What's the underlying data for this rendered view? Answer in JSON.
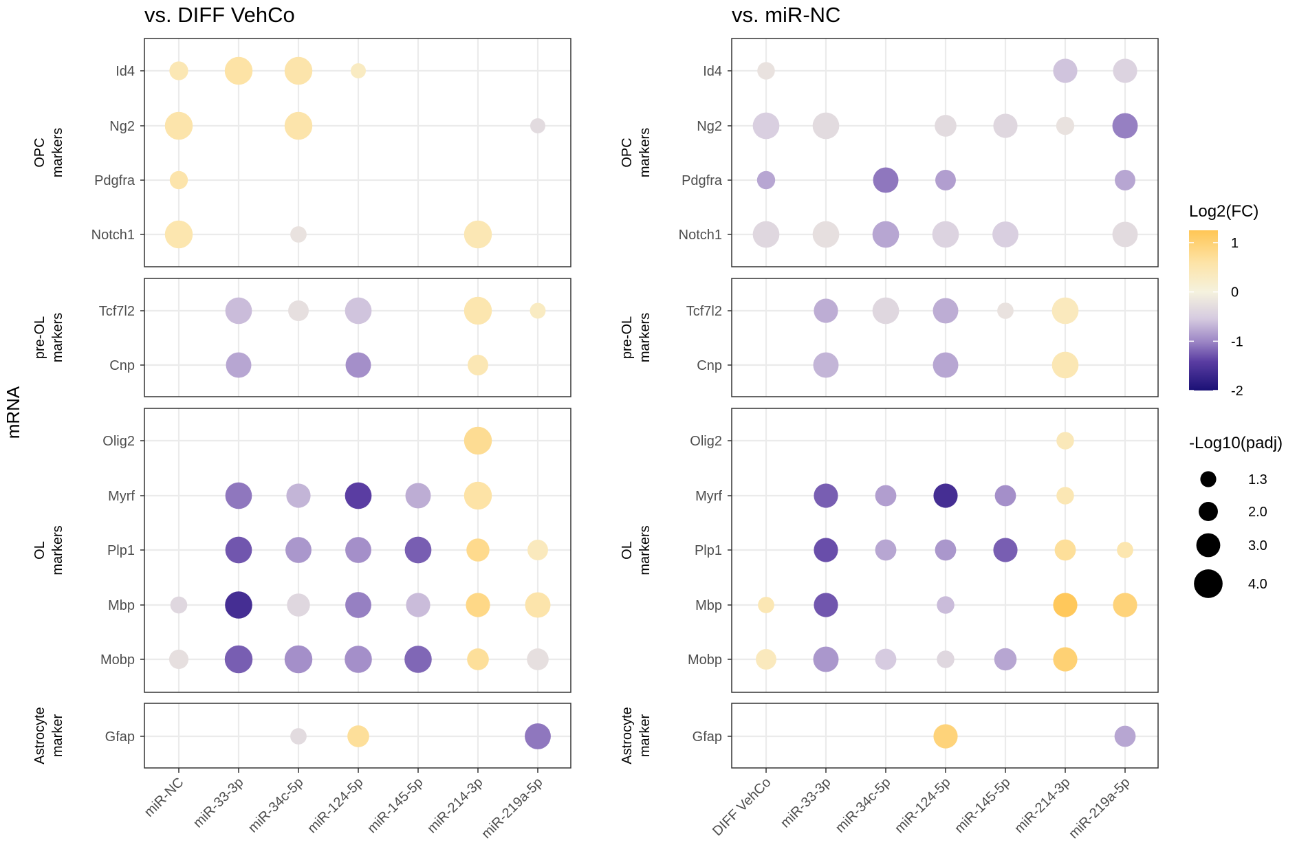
{
  "figure": {
    "y_axis_title": "mRNA",
    "legend_color_title": "Log2(FC)",
    "legend_color_ticks": [
      "1",
      "0",
      "-1",
      "-2"
    ],
    "legend_size_title": "-Log10(padj)",
    "legend_size_labels": [
      "1.3",
      "2.0",
      "3.0",
      "4.0"
    ]
  },
  "colors": {
    "low": "#1a1075",
    "mid_low": "#7b5fb0",
    "light_low": "#d0c4dc",
    "mid": "#f5f2de",
    "high": "#ffc655"
  },
  "chart_data": [
    {
      "type": "scatter",
      "title": "vs. DIFF VehCo",
      "categories": [
        "miR-NC",
        "miR-33-3p",
        "miR-34c-5p",
        "miR-124-5p",
        "miR-145-5p",
        "miR-214-3p",
        "miR-219a-5p"
      ],
      "groups": [
        {
          "label": [
            "OPC",
            "markers"
          ],
          "genes": [
            "Id4",
            "Ng2",
            "Pdgfra",
            "Notch1"
          ]
        },
        {
          "label": [
            "pre-OL",
            "markers"
          ],
          "genes": [
            "Tcf7l2",
            "Cnp"
          ]
        },
        {
          "label": [
            "OL",
            "markers"
          ],
          "genes": [
            "Olig2",
            "Myrf",
            "Plp1",
            "Mbp",
            "Mobp"
          ]
        },
        {
          "label": [
            "Astrocyte",
            "marker"
          ],
          "genes": [
            "Gfap"
          ]
        }
      ],
      "color_range": [
        -2,
        1.25
      ],
      "points": [
        {
          "gene": "Id4",
          "x": "miR-NC",
          "log2fc": 0.45,
          "neglog10padj": 1.9
        },
        {
          "gene": "Id4",
          "x": "miR-33-3p",
          "log2fc": 0.6,
          "neglog10padj": 3.4
        },
        {
          "gene": "Id4",
          "x": "miR-34c-5p",
          "log2fc": 0.55,
          "neglog10padj": 3.4
        },
        {
          "gene": "Id4",
          "x": "miR-124-5p",
          "log2fc": 0.3,
          "neglog10padj": 1.3
        },
        {
          "gene": "Ng2",
          "x": "miR-NC",
          "log2fc": 0.55,
          "neglog10padj": 3.4
        },
        {
          "gene": "Ng2",
          "x": "miR-34c-5p",
          "log2fc": 0.55,
          "neglog10padj": 3.4
        },
        {
          "gene": "Ng2",
          "x": "miR-219a-5p",
          "log2fc": -0.3,
          "neglog10padj": 1.3
        },
        {
          "gene": "Pdgfra",
          "x": "miR-NC",
          "log2fc": 0.55,
          "neglog10padj": 1.8
        },
        {
          "gene": "Notch1",
          "x": "miR-NC",
          "log2fc": 0.5,
          "neglog10padj": 3.4
        },
        {
          "gene": "Notch1",
          "x": "miR-34c-5p",
          "log2fc": -0.2,
          "neglog10padj": 1.5
        },
        {
          "gene": "Notch1",
          "x": "miR-214-3p",
          "log2fc": 0.45,
          "neglog10padj": 3.4
        },
        {
          "gene": "Tcf7l2",
          "x": "miR-33-3p",
          "log2fc": -0.6,
          "neglog10padj": 3.2
        },
        {
          "gene": "Tcf7l2",
          "x": "miR-34c-5p",
          "log2fc": -0.25,
          "neglog10padj": 2.2
        },
        {
          "gene": "Tcf7l2",
          "x": "miR-124-5p",
          "log2fc": -0.55,
          "neglog10padj": 3.2
        },
        {
          "gene": "Tcf7l2",
          "x": "miR-214-3p",
          "log2fc": 0.5,
          "neglog10padj": 3.4
        },
        {
          "gene": "Tcf7l2",
          "x": "miR-219a-5p",
          "log2fc": 0.3,
          "neglog10padj": 1.4
        },
        {
          "gene": "Cnp",
          "x": "miR-33-3p",
          "log2fc": -0.75,
          "neglog10padj": 3.0
        },
        {
          "gene": "Cnp",
          "x": "miR-124-5p",
          "log2fc": -0.9,
          "neglog10padj": 3.0
        },
        {
          "gene": "Cnp",
          "x": "miR-214-3p",
          "log2fc": 0.45,
          "neglog10padj": 2.2
        },
        {
          "gene": "Olig2",
          "x": "miR-214-3p",
          "log2fc": 0.75,
          "neglog10padj": 3.4
        },
        {
          "gene": "Myrf",
          "x": "miR-33-3p",
          "log2fc": -1.05,
          "neglog10padj": 3.2
        },
        {
          "gene": "Myrf",
          "x": "miR-34c-5p",
          "log2fc": -0.65,
          "neglog10padj": 2.8
        },
        {
          "gene": "Myrf",
          "x": "miR-124-5p",
          "log2fc": -1.4,
          "neglog10padj": 3.2
        },
        {
          "gene": "Myrf",
          "x": "miR-145-5p",
          "log2fc": -0.7,
          "neglog10padj": 3.0
        },
        {
          "gene": "Myrf",
          "x": "miR-214-3p",
          "log2fc": 0.6,
          "neglog10padj": 3.4
        },
        {
          "gene": "Plp1",
          "x": "miR-33-3p",
          "log2fc": -1.25,
          "neglog10padj": 3.2
        },
        {
          "gene": "Plp1",
          "x": "miR-34c-5p",
          "log2fc": -0.85,
          "neglog10padj": 3.1
        },
        {
          "gene": "Plp1",
          "x": "miR-124-5p",
          "log2fc": -0.9,
          "neglog10padj": 3.1
        },
        {
          "gene": "Plp1",
          "x": "miR-145-5p",
          "log2fc": -1.2,
          "neglog10padj": 3.2
        },
        {
          "gene": "Plp1",
          "x": "miR-214-3p",
          "log2fc": 0.8,
          "neglog10padj": 2.6
        },
        {
          "gene": "Plp1",
          "x": "miR-219a-5p",
          "log2fc": 0.35,
          "neglog10padj": 2.2
        },
        {
          "gene": "Mbp",
          "x": "miR-NC",
          "log2fc": -0.35,
          "neglog10padj": 1.6
        },
        {
          "gene": "Mbp",
          "x": "miR-33-3p",
          "log2fc": -1.6,
          "neglog10padj": 3.3
        },
        {
          "gene": "Mbp",
          "x": "miR-34c-5p",
          "log2fc": -0.35,
          "neglog10padj": 2.6
        },
        {
          "gene": "Mbp",
          "x": "miR-124-5p",
          "log2fc": -1.0,
          "neglog10padj": 3.1
        },
        {
          "gene": "Mbp",
          "x": "miR-145-5p",
          "log2fc": -0.6,
          "neglog10padj": 2.8
        },
        {
          "gene": "Mbp",
          "x": "miR-214-3p",
          "log2fc": 0.85,
          "neglog10padj": 2.8
        },
        {
          "gene": "Mbp",
          "x": "miR-219a-5p",
          "log2fc": 0.55,
          "neglog10padj": 3.0
        },
        {
          "gene": "Mobp",
          "x": "miR-NC",
          "log2fc": -0.25,
          "neglog10padj": 2.0
        },
        {
          "gene": "Mobp",
          "x": "miR-33-3p",
          "log2fc": -1.2,
          "neglog10padj": 3.4
        },
        {
          "gene": "Mobp",
          "x": "miR-34c-5p",
          "log2fc": -0.9,
          "neglog10padj": 3.4
        },
        {
          "gene": "Mobp",
          "x": "miR-124-5p",
          "log2fc": -0.9,
          "neglog10padj": 3.3
        },
        {
          "gene": "Mobp",
          "x": "miR-145-5p",
          "log2fc": -1.15,
          "neglog10padj": 3.3
        },
        {
          "gene": "Mobp",
          "x": "miR-214-3p",
          "log2fc": 0.7,
          "neglog10padj": 2.4
        },
        {
          "gene": "Mobp",
          "x": "miR-219a-5p",
          "log2fc": -0.25,
          "neglog10padj": 2.4
        },
        {
          "gene": "Gfap",
          "x": "miR-34c-5p",
          "log2fc": -0.3,
          "neglog10padj": 1.5
        },
        {
          "gene": "Gfap",
          "x": "miR-124-5p",
          "log2fc": 0.7,
          "neglog10padj": 2.4
        },
        {
          "gene": "Gfap",
          "x": "miR-219a-5p",
          "log2fc": -1.05,
          "neglog10padj": 3.1
        }
      ]
    },
    {
      "type": "scatter",
      "title": "vs. miR-NC",
      "categories": [
        "DIFF VehCo",
        "miR-33-3p",
        "miR-34c-5p",
        "miR-124-5p",
        "miR-145-5p",
        "miR-214-3p",
        "miR-219a-5p"
      ],
      "groups": [
        {
          "label": [
            "OPC",
            "markers"
          ],
          "genes": [
            "Id4",
            "Ng2",
            "Pdgfra",
            "Notch1"
          ]
        },
        {
          "label": [
            "pre-OL",
            "markers"
          ],
          "genes": [
            "Tcf7l2",
            "Cnp"
          ]
        },
        {
          "label": [
            "OL",
            "markers"
          ],
          "genes": [
            "Olig2",
            "Myrf",
            "Plp1",
            "Mbp",
            "Mobp"
          ]
        },
        {
          "label": [
            "Astrocyte",
            "marker"
          ],
          "genes": [
            "Gfap"
          ]
        }
      ],
      "color_range": [
        -2,
        1.25
      ],
      "points": [
        {
          "gene": "Id4",
          "x": "DIFF VehCo",
          "log2fc": -0.2,
          "neglog10padj": 1.7
        },
        {
          "gene": "Id4",
          "x": "miR-214-3p",
          "log2fc": -0.55,
          "neglog10padj": 2.8
        },
        {
          "gene": "Id4",
          "x": "miR-219a-5p",
          "log2fc": -0.4,
          "neglog10padj": 2.8
        },
        {
          "gene": "Ng2",
          "x": "DIFF VehCo",
          "log2fc": -0.45,
          "neglog10padj": 3.2
        },
        {
          "gene": "Ng2",
          "x": "miR-33-3p",
          "log2fc": -0.3,
          "neglog10padj": 3.2
        },
        {
          "gene": "Ng2",
          "x": "miR-124-5p",
          "log2fc": -0.3,
          "neglog10padj": 2.4
        },
        {
          "gene": "Ng2",
          "x": "miR-145-5p",
          "log2fc": -0.35,
          "neglog10padj": 2.8
        },
        {
          "gene": "Ng2",
          "x": "miR-214-3p",
          "log2fc": -0.2,
          "neglog10padj": 1.8
        },
        {
          "gene": "Ng2",
          "x": "miR-219a-5p",
          "log2fc": -1.0,
          "neglog10padj": 3.0
        },
        {
          "gene": "Pdgfra",
          "x": "DIFF VehCo",
          "log2fc": -0.75,
          "neglog10padj": 1.8
        },
        {
          "gene": "Pdgfra",
          "x": "miR-34c-5p",
          "log2fc": -1.05,
          "neglog10padj": 3.0
        },
        {
          "gene": "Pdgfra",
          "x": "miR-124-5p",
          "log2fc": -0.8,
          "neglog10padj": 2.2
        },
        {
          "gene": "Pdgfra",
          "x": "miR-219a-5p",
          "log2fc": -0.75,
          "neglog10padj": 2.2
        },
        {
          "gene": "Notch1",
          "x": "DIFF VehCo",
          "log2fc": -0.35,
          "neglog10padj": 3.2
        },
        {
          "gene": "Notch1",
          "x": "miR-33-3p",
          "log2fc": -0.25,
          "neglog10padj": 3.2
        },
        {
          "gene": "Notch1",
          "x": "miR-34c-5p",
          "log2fc": -0.75,
          "neglog10padj": 3.2
        },
        {
          "gene": "Notch1",
          "x": "miR-124-5p",
          "log2fc": -0.4,
          "neglog10padj": 3.2
        },
        {
          "gene": "Notch1",
          "x": "miR-145-5p",
          "log2fc": -0.45,
          "neglog10padj": 3.1
        },
        {
          "gene": "Notch1",
          "x": "miR-219a-5p",
          "log2fc": -0.3,
          "neglog10padj": 3.0
        },
        {
          "gene": "Tcf7l2",
          "x": "miR-33-3p",
          "log2fc": -0.7,
          "neglog10padj": 2.8
        },
        {
          "gene": "Tcf7l2",
          "x": "miR-34c-5p",
          "log2fc": -0.35,
          "neglog10padj": 3.2
        },
        {
          "gene": "Tcf7l2",
          "x": "miR-124-5p",
          "log2fc": -0.7,
          "neglog10padj": 3.0
        },
        {
          "gene": "Tcf7l2",
          "x": "miR-145-5p",
          "log2fc": -0.2,
          "neglog10padj": 1.5
        },
        {
          "gene": "Tcf7l2",
          "x": "miR-214-3p",
          "log2fc": 0.35,
          "neglog10padj": 3.2
        },
        {
          "gene": "Cnp",
          "x": "miR-33-3p",
          "log2fc": -0.65,
          "neglog10padj": 3.0
        },
        {
          "gene": "Cnp",
          "x": "miR-124-5p",
          "log2fc": -0.75,
          "neglog10padj": 3.0
        },
        {
          "gene": "Cnp",
          "x": "miR-214-3p",
          "log2fc": 0.45,
          "neglog10padj": 3.2
        },
        {
          "gene": "Olig2",
          "x": "miR-214-3p",
          "log2fc": 0.4,
          "neglog10padj": 1.7
        },
        {
          "gene": "Myrf",
          "x": "miR-33-3p",
          "log2fc": -1.2,
          "neglog10padj": 2.8
        },
        {
          "gene": "Myrf",
          "x": "miR-34c-5p",
          "log2fc": -0.8,
          "neglog10padj": 2.3
        },
        {
          "gene": "Myrf",
          "x": "miR-124-5p",
          "log2fc": -1.6,
          "neglog10padj": 2.8
        },
        {
          "gene": "Myrf",
          "x": "miR-145-5p",
          "log2fc": -0.9,
          "neglog10padj": 2.3
        },
        {
          "gene": "Myrf",
          "x": "miR-214-3p",
          "log2fc": 0.45,
          "neglog10padj": 1.7
        },
        {
          "gene": "Plp1",
          "x": "miR-33-3p",
          "log2fc": -1.3,
          "neglog10padj": 2.8
        },
        {
          "gene": "Plp1",
          "x": "miR-34c-5p",
          "log2fc": -0.75,
          "neglog10padj": 2.3
        },
        {
          "gene": "Plp1",
          "x": "miR-124-5p",
          "log2fc": -0.85,
          "neglog10padj": 2.3
        },
        {
          "gene": "Plp1",
          "x": "miR-145-5p",
          "log2fc": -1.2,
          "neglog10padj": 2.8
        },
        {
          "gene": "Plp1",
          "x": "miR-214-3p",
          "log2fc": 0.7,
          "neglog10padj": 2.3
        },
        {
          "gene": "Plp1",
          "x": "miR-219a-5p",
          "log2fc": 0.5,
          "neglog10padj": 1.5
        },
        {
          "gene": "Mbp",
          "x": "DIFF VehCo",
          "log2fc": 0.45,
          "neglog10padj": 1.5
        },
        {
          "gene": "Mbp",
          "x": "miR-33-3p",
          "log2fc": -1.25,
          "neglog10padj": 2.8
        },
        {
          "gene": "Mbp",
          "x": "miR-124-5p",
          "log2fc": -0.6,
          "neglog10padj": 1.7
        },
        {
          "gene": "Mbp",
          "x": "miR-214-3p",
          "log2fc": 1.2,
          "neglog10padj": 2.8
        },
        {
          "gene": "Mbp",
          "x": "miR-219a-5p",
          "log2fc": 0.95,
          "neglog10padj": 2.8
        },
        {
          "gene": "Mobp",
          "x": "DIFF VehCo",
          "log2fc": 0.35,
          "neglog10padj": 2.2
        },
        {
          "gene": "Mobp",
          "x": "miR-33-3p",
          "log2fc": -0.85,
          "neglog10padj": 3.0
        },
        {
          "gene": "Mobp",
          "x": "miR-34c-5p",
          "log2fc": -0.5,
          "neglog10padj": 2.3
        },
        {
          "gene": "Mobp",
          "x": "miR-124-5p",
          "log2fc": -0.35,
          "neglog10padj": 1.7
        },
        {
          "gene": "Mobp",
          "x": "miR-145-5p",
          "log2fc": -0.75,
          "neglog10padj": 2.5
        },
        {
          "gene": "Mobp",
          "x": "miR-214-3p",
          "log2fc": 1.0,
          "neglog10padj": 2.8
        },
        {
          "gene": "Gfap",
          "x": "miR-124-5p",
          "log2fc": 0.95,
          "neglog10padj": 2.8
        },
        {
          "gene": "Gfap",
          "x": "miR-219a-5p",
          "log2fc": -0.75,
          "neglog10padj": 2.3
        }
      ]
    }
  ]
}
